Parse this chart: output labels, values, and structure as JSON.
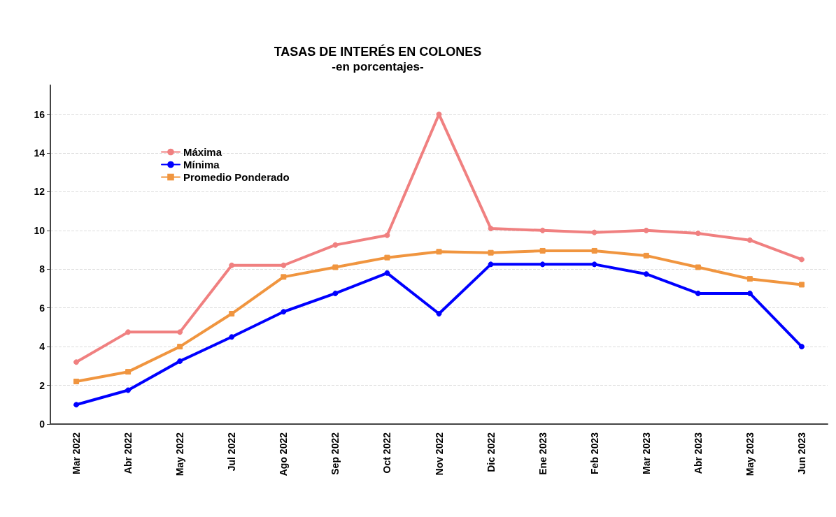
{
  "chart_data": {
    "type": "line",
    "title": "TASAS DE INTERÉS EN COLONES",
    "subtitle": "-en porcentajes-",
    "categories": [
      "Mar 2022",
      "Abr 2022",
      "May 2022",
      "Jul 2022",
      "Ago 2022",
      "Sep 2022",
      "Oct 2022",
      "Nov 2022",
      "Dic 2022",
      "Ene 2023",
      "Feb 2023",
      "Mar 2023",
      "Abr 2023",
      "May 2023",
      "Jun 2023"
    ],
    "series": [
      {
        "name": "Máxima",
        "color": "#f08080",
        "marker": "circle",
        "values": [
          3.2,
          4.75,
          4.75,
          8.2,
          8.2,
          9.25,
          9.75,
          16.0,
          10.1,
          10.0,
          9.9,
          10.0,
          9.85,
          9.5,
          8.5
        ]
      },
      {
        "name": "Mínima",
        "color": "#0000ff",
        "marker": "circle",
        "values": [
          1.0,
          1.75,
          3.25,
          4.5,
          5.8,
          6.75,
          7.8,
          5.7,
          8.25,
          8.25,
          8.25,
          7.75,
          6.75,
          6.75,
          4.0
        ]
      },
      {
        "name": "Promedio Ponderado",
        "color": "#f0953f",
        "marker": "square",
        "values": [
          2.2,
          2.7,
          4.0,
          5.7,
          7.6,
          8.1,
          8.6,
          8.9,
          8.85,
          8.95,
          8.95,
          8.7,
          8.1,
          7.5,
          7.2
        ]
      }
    ],
    "ylim": [
      0,
      17.5
    ],
    "yticks": [
      0,
      2,
      4,
      6,
      8,
      10,
      12,
      14,
      16
    ],
    "grid": "y",
    "legend": "top left",
    "line_style": "solid"
  }
}
